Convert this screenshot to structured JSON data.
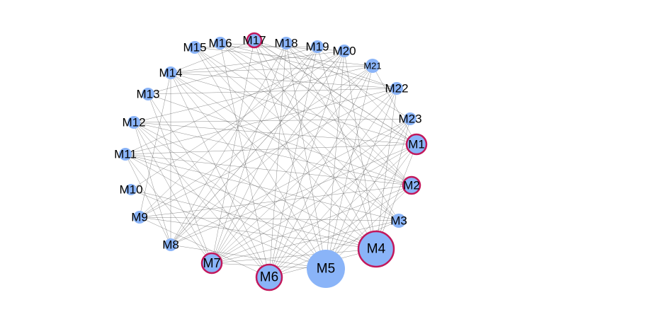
{
  "diagram": {
    "type": "network-graph",
    "layout": "circular",
    "colors": {
      "node_fill": "#8ab4f8",
      "highlight_stroke": "#c2185b",
      "edge": "#555555",
      "label": "#000000",
      "background": "#ffffff"
    },
    "nodes": [
      {
        "id": "M1",
        "label": "M1",
        "highlighted": true
      },
      {
        "id": "M2",
        "label": "M2",
        "highlighted": true
      },
      {
        "id": "M3",
        "label": "M3",
        "highlighted": false
      },
      {
        "id": "M4",
        "label": "M4",
        "highlighted": true
      },
      {
        "id": "M5",
        "label": "M5",
        "highlighted": false
      },
      {
        "id": "M6",
        "label": "M6",
        "highlighted": true
      },
      {
        "id": "M7",
        "label": "M7",
        "highlighted": true
      },
      {
        "id": "M8",
        "label": "M8",
        "highlighted": false
      },
      {
        "id": "M9",
        "label": "M9",
        "highlighted": false
      },
      {
        "id": "M10",
        "label": "M10",
        "highlighted": false
      },
      {
        "id": "M11",
        "label": "M11",
        "highlighted": false
      },
      {
        "id": "M12",
        "label": "M12",
        "highlighted": false
      },
      {
        "id": "M13",
        "label": "M13",
        "highlighted": false
      },
      {
        "id": "M14",
        "label": "M14",
        "highlighted": false
      },
      {
        "id": "M15",
        "label": "M15",
        "highlighted": false
      },
      {
        "id": "M16",
        "label": "M16",
        "highlighted": false
      },
      {
        "id": "M17",
        "label": "M17",
        "highlighted": true
      },
      {
        "id": "M18",
        "label": "M18",
        "highlighted": false
      },
      {
        "id": "M19",
        "label": "M19",
        "highlighted": false
      },
      {
        "id": "M20",
        "label": "M20",
        "highlighted": false
      },
      {
        "id": "M21",
        "label": "M21",
        "highlighted": false
      },
      {
        "id": "M22",
        "label": "M22",
        "highlighted": false
      },
      {
        "id": "M23",
        "label": "M23",
        "highlighted": false
      }
    ],
    "edges": [
      [
        "M1",
        "M14"
      ],
      [
        "M1",
        "M12"
      ],
      [
        "M1",
        "M11"
      ],
      [
        "M1",
        "M17"
      ],
      [
        "M1",
        "M19"
      ],
      [
        "M1",
        "M7"
      ],
      [
        "M1",
        "M6"
      ],
      [
        "M1",
        "M5"
      ],
      [
        "M1",
        "M8"
      ],
      [
        "M1",
        "M16"
      ],
      [
        "M2",
        "M13"
      ],
      [
        "M2",
        "M12"
      ],
      [
        "M2",
        "M16"
      ],
      [
        "M2",
        "M18"
      ],
      [
        "M2",
        "M6"
      ],
      [
        "M2",
        "M7"
      ],
      [
        "M2",
        "M9"
      ],
      [
        "M2",
        "M5"
      ],
      [
        "M2",
        "M11"
      ],
      [
        "M3",
        "M14"
      ],
      [
        "M3",
        "M15"
      ],
      [
        "M3",
        "M6"
      ],
      [
        "M3",
        "M7"
      ],
      [
        "M3",
        "M18"
      ],
      [
        "M3",
        "M9"
      ],
      [
        "M4",
        "M14"
      ],
      [
        "M4",
        "M17"
      ],
      [
        "M4",
        "M15"
      ],
      [
        "M4",
        "M12"
      ],
      [
        "M4",
        "M11"
      ],
      [
        "M4",
        "M7"
      ],
      [
        "M4",
        "M6"
      ],
      [
        "M4",
        "M19"
      ],
      [
        "M4",
        "M22"
      ],
      [
        "M4",
        "M23"
      ],
      [
        "M4",
        "M20"
      ],
      [
        "M4",
        "M1"
      ],
      [
        "M4",
        "M10"
      ],
      [
        "M4",
        "M9"
      ],
      [
        "M5",
        "M17"
      ],
      [
        "M5",
        "M14"
      ],
      [
        "M5",
        "M15"
      ],
      [
        "M5",
        "M12"
      ],
      [
        "M5",
        "M11"
      ],
      [
        "M5",
        "M7"
      ],
      [
        "M5",
        "M8"
      ],
      [
        "M5",
        "M21"
      ],
      [
        "M5",
        "M22"
      ],
      [
        "M5",
        "M20"
      ],
      [
        "M5",
        "M18"
      ],
      [
        "M5",
        "M10"
      ],
      [
        "M5",
        "M23"
      ],
      [
        "M6",
        "M14"
      ],
      [
        "M6",
        "M16"
      ],
      [
        "M6",
        "M12"
      ],
      [
        "M6",
        "M19"
      ],
      [
        "M6",
        "M21"
      ],
      [
        "M6",
        "M23"
      ],
      [
        "M6",
        "M9"
      ],
      [
        "M6",
        "M20"
      ],
      [
        "M6",
        "M13"
      ],
      [
        "M7",
        "M17"
      ],
      [
        "M7",
        "M12"
      ],
      [
        "M7",
        "M18"
      ],
      [
        "M7",
        "M21"
      ],
      [
        "M7",
        "M22"
      ],
      [
        "M7",
        "M13"
      ],
      [
        "M7",
        "M20"
      ],
      [
        "M7",
        "M11"
      ],
      [
        "M8",
        "M14"
      ],
      [
        "M8",
        "M11"
      ],
      [
        "M8",
        "M18"
      ],
      [
        "M8",
        "M20"
      ],
      [
        "M8",
        "M23"
      ],
      [
        "M8",
        "M12"
      ],
      [
        "M9",
        "M19"
      ],
      [
        "M9",
        "M22"
      ],
      [
        "M9",
        "M21"
      ],
      [
        "M9",
        "M14"
      ],
      [
        "M11",
        "M22"
      ],
      [
        "M11",
        "M20"
      ],
      [
        "M11",
        "M3"
      ],
      [
        "M12",
        "M21"
      ],
      [
        "M12",
        "M23"
      ],
      [
        "M13",
        "M19"
      ],
      [
        "M13",
        "M22"
      ],
      [
        "M14",
        "M20"
      ],
      [
        "M14",
        "M21"
      ],
      [
        "M14",
        "M22"
      ],
      [
        "M14",
        "M17"
      ],
      [
        "M15",
        "M21"
      ],
      [
        "M15",
        "M19"
      ],
      [
        "M15",
        "M2"
      ],
      [
        "M16",
        "M20"
      ],
      [
        "M16",
        "M22"
      ],
      [
        "M16",
        "M3"
      ],
      [
        "M17",
        "M1"
      ],
      [
        "M17",
        "M22"
      ],
      [
        "M17",
        "M2"
      ],
      [
        "M18",
        "M6"
      ],
      [
        "M18",
        "M23"
      ],
      [
        "M19",
        "M7"
      ],
      [
        "M19",
        "M8"
      ],
      [
        "M20",
        "M10"
      ],
      [
        "M20",
        "M8"
      ],
      [
        "M21",
        "M1"
      ],
      [
        "M21",
        "M8"
      ],
      [
        "M22",
        "M6"
      ],
      [
        "M23",
        "M7"
      ]
    ]
  }
}
